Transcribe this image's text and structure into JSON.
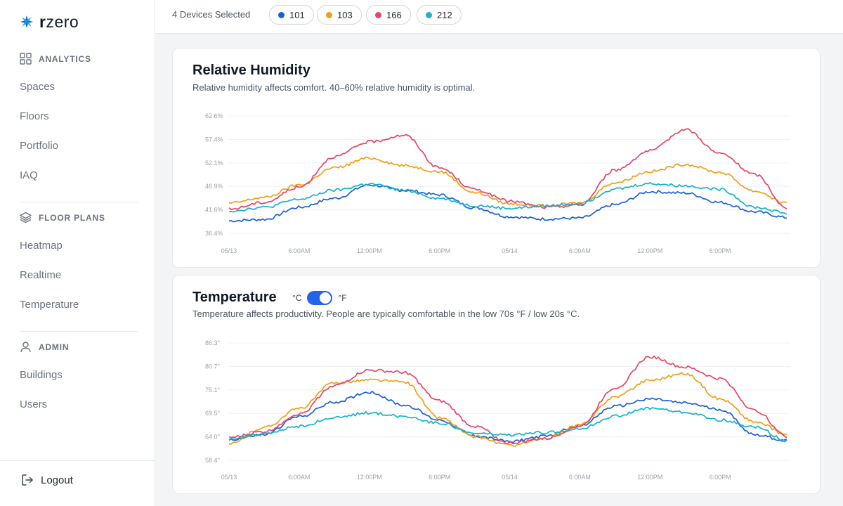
{
  "brand": {
    "name_prefix": "r",
    "name_suffix": "zero"
  },
  "sidebar": {
    "sections": [
      {
        "title": "ANALYTICS",
        "icon": "grid-icon",
        "items": [
          "Spaces",
          "Floors",
          "Portfolio",
          "IAQ"
        ]
      },
      {
        "title": "FLOOR PLANS",
        "icon": "layers-icon",
        "items": [
          "Heatmap",
          "Realtime",
          "Temperature"
        ]
      },
      {
        "title": "ADMIN",
        "icon": "user-icon",
        "items": [
          "Buildings",
          "Users"
        ]
      }
    ],
    "logout": "Logout"
  },
  "topbar": {
    "devices_label": "4 Devices Selected",
    "devices": [
      {
        "label": "101",
        "color": "#1d5fd8"
      },
      {
        "label": "103",
        "color": "#f29f13"
      },
      {
        "label": "166",
        "color": "#e8436b"
      },
      {
        "label": "212",
        "color": "#16b3c9"
      }
    ]
  },
  "humidity": {
    "title": "Relative Humidity",
    "subtitle": "Relative humidity affects comfort. 40–60% relative humidity is optimal."
  },
  "temperature": {
    "title": "Temperature",
    "unit_c": "°C",
    "unit_f": "°F",
    "unit_selected": "°F",
    "subtitle": "Temperature affects productivity. People are typically comfortable in the low 70s °F / low 20s °C."
  },
  "chart_data": [
    {
      "type": "line",
      "title": "Relative Humidity",
      "x_ticks": [
        "05/13",
        "6:00AM",
        "12:00PM",
        "6:00PM",
        "05/14",
        "6:00AM",
        "12:00PM",
        "6:00PM"
      ],
      "y_ticks": [
        "36.4%",
        "41.6%",
        "46.9%",
        "52.1%",
        "57.4%",
        "62.6%"
      ],
      "ylim": [
        36.4,
        62.6
      ],
      "x_hours": [
        0,
        3,
        6,
        9,
        12,
        15,
        18,
        21,
        24,
        27,
        30,
        33,
        36,
        39,
        42,
        45,
        47.8
      ],
      "grid": true,
      "series": [
        {
          "name": "101",
          "color": "#1d5fd8",
          "values": [
            39.2,
            39.5,
            42.2,
            44.2,
            47.2,
            46.0,
            45.0,
            42.1,
            40.1,
            39.6,
            39.8,
            42.8,
            45.7,
            45.4,
            43.3,
            41.2,
            39.9
          ]
        },
        {
          "name": "103",
          "color": "#f29f13",
          "values": [
            43.1,
            44.4,
            47.2,
            51.0,
            53.2,
            51.5,
            50.2,
            45.5,
            43.0,
            42.5,
            43.2,
            47.7,
            50.2,
            51.8,
            50.0,
            45.8,
            43.0
          ]
        },
        {
          "name": "166",
          "color": "#e8436b",
          "values": [
            41.8,
            43.3,
            46.7,
            53.5,
            56.8,
            58.3,
            51.0,
            46.2,
            43.6,
            42.2,
            42.7,
            50.5,
            54.8,
            59.6,
            54.2,
            49.5,
            41.8
          ]
        },
        {
          "name": "212",
          "color": "#16b3c9",
          "values": [
            41.4,
            42.2,
            44.0,
            46.0,
            47.4,
            46.0,
            44.2,
            42.6,
            42.0,
            42.5,
            43.1,
            46.3,
            47.5,
            47.0,
            46.2,
            42.2,
            40.9
          ]
        }
      ]
    },
    {
      "type": "line",
      "title": "Temperature",
      "x_ticks": [
        "05/13",
        "6:00AM",
        "12:00PM",
        "6:00PM",
        "05/14",
        "6:00AM",
        "12:00PM",
        "6:00PM"
      ],
      "y_ticks": [
        "58.4°",
        "64.0°",
        "69.5°",
        "75.1°",
        "80.7°",
        "86.3°"
      ],
      "ylim": [
        58.4,
        86.3
      ],
      "x_hours": [
        0,
        3,
        6,
        9,
        12,
        15,
        18,
        21,
        24,
        27,
        30,
        33,
        36,
        39,
        42,
        45,
        47.8
      ],
      "grid": true,
      "series": [
        {
          "name": "101",
          "color": "#1d5fd8",
          "values": [
            63.3,
            64.5,
            68.8,
            72.2,
            74.6,
            71.5,
            68.0,
            64.2,
            62.9,
            64.1,
            66.7,
            71.2,
            73.0,
            72.0,
            70.5,
            64.5,
            63.0
          ]
        },
        {
          "name": "103",
          "color": "#f29f13",
          "values": [
            62.2,
            66.2,
            70.7,
            76.8,
            77.5,
            77.0,
            68.5,
            64.0,
            62.0,
            63.5,
            66.8,
            73.5,
            77.5,
            79.0,
            73.0,
            67.5,
            64.5
          ]
        },
        {
          "name": "166",
          "color": "#e8436b",
          "values": [
            63.8,
            65.2,
            69.4,
            76.2,
            79.8,
            79.3,
            72.5,
            66.5,
            62.5,
            63.5,
            66.5,
            75.6,
            83.0,
            80.5,
            77.8,
            70.2,
            64.0
          ]
        },
        {
          "name": "212",
          "color": "#16b3c9",
          "values": [
            63.6,
            64.6,
            66.5,
            68.5,
            69.7,
            68.8,
            67.3,
            64.8,
            64.4,
            65.0,
            65.9,
            68.9,
            70.8,
            69.8,
            68.0,
            66.3,
            63.0
          ]
        }
      ]
    }
  ]
}
